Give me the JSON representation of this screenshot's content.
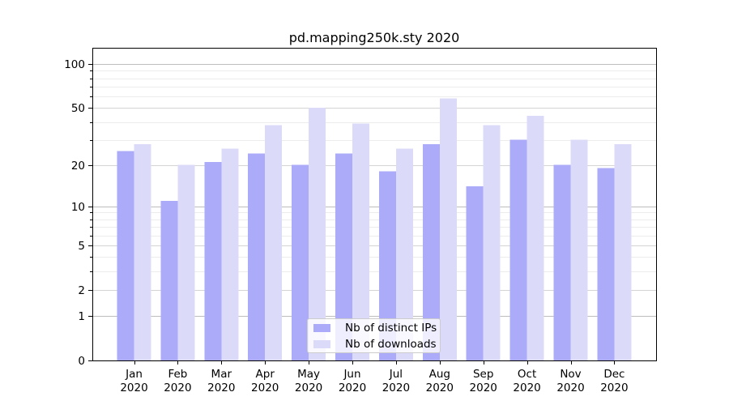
{
  "chart_data": {
    "type": "bar",
    "title": "pd.mapping250k.sty 2020",
    "categories": [
      "Jan",
      "Feb",
      "Mar",
      "Apr",
      "May",
      "Jun",
      "Jul",
      "Aug",
      "Sep",
      "Oct",
      "Nov",
      "Dec"
    ],
    "category_year": "2020",
    "series": [
      {
        "name": "Nb of distinct IPs",
        "color": "#ababfa",
        "values": [
          25,
          11,
          21,
          24,
          20,
          24,
          18,
          28,
          14,
          30,
          20,
          19
        ]
      },
      {
        "name": "Nb of downloads",
        "color": "#dbdbf9",
        "values": [
          28,
          20,
          26,
          38,
          50,
          39,
          26,
          58,
          38,
          44,
          30,
          28
        ]
      }
    ],
    "yscale": "log1p",
    "ylim": [
      0,
      129
    ],
    "xlabel": "",
    "ylabel": "",
    "y_ticks": [
      0,
      1,
      2,
      5,
      10,
      20,
      50,
      100
    ],
    "y_decade_gridlines": [
      1,
      10,
      100
    ],
    "y_sub_gridlines": [
      2,
      5,
      20,
      50
    ],
    "y_minor_gridlines": [
      3,
      4,
      6,
      7,
      8,
      9,
      30,
      40,
      60,
      70,
      80,
      90
    ],
    "grid": "horizontal",
    "legend_position": "lower center"
  },
  "colors": {
    "frame": "#000000",
    "grid_decade": "#bdbdbd",
    "grid_sub": "#d4d4d4",
    "grid_minor": "#ececec",
    "text": "#000000",
    "background": "#ffffff"
  }
}
